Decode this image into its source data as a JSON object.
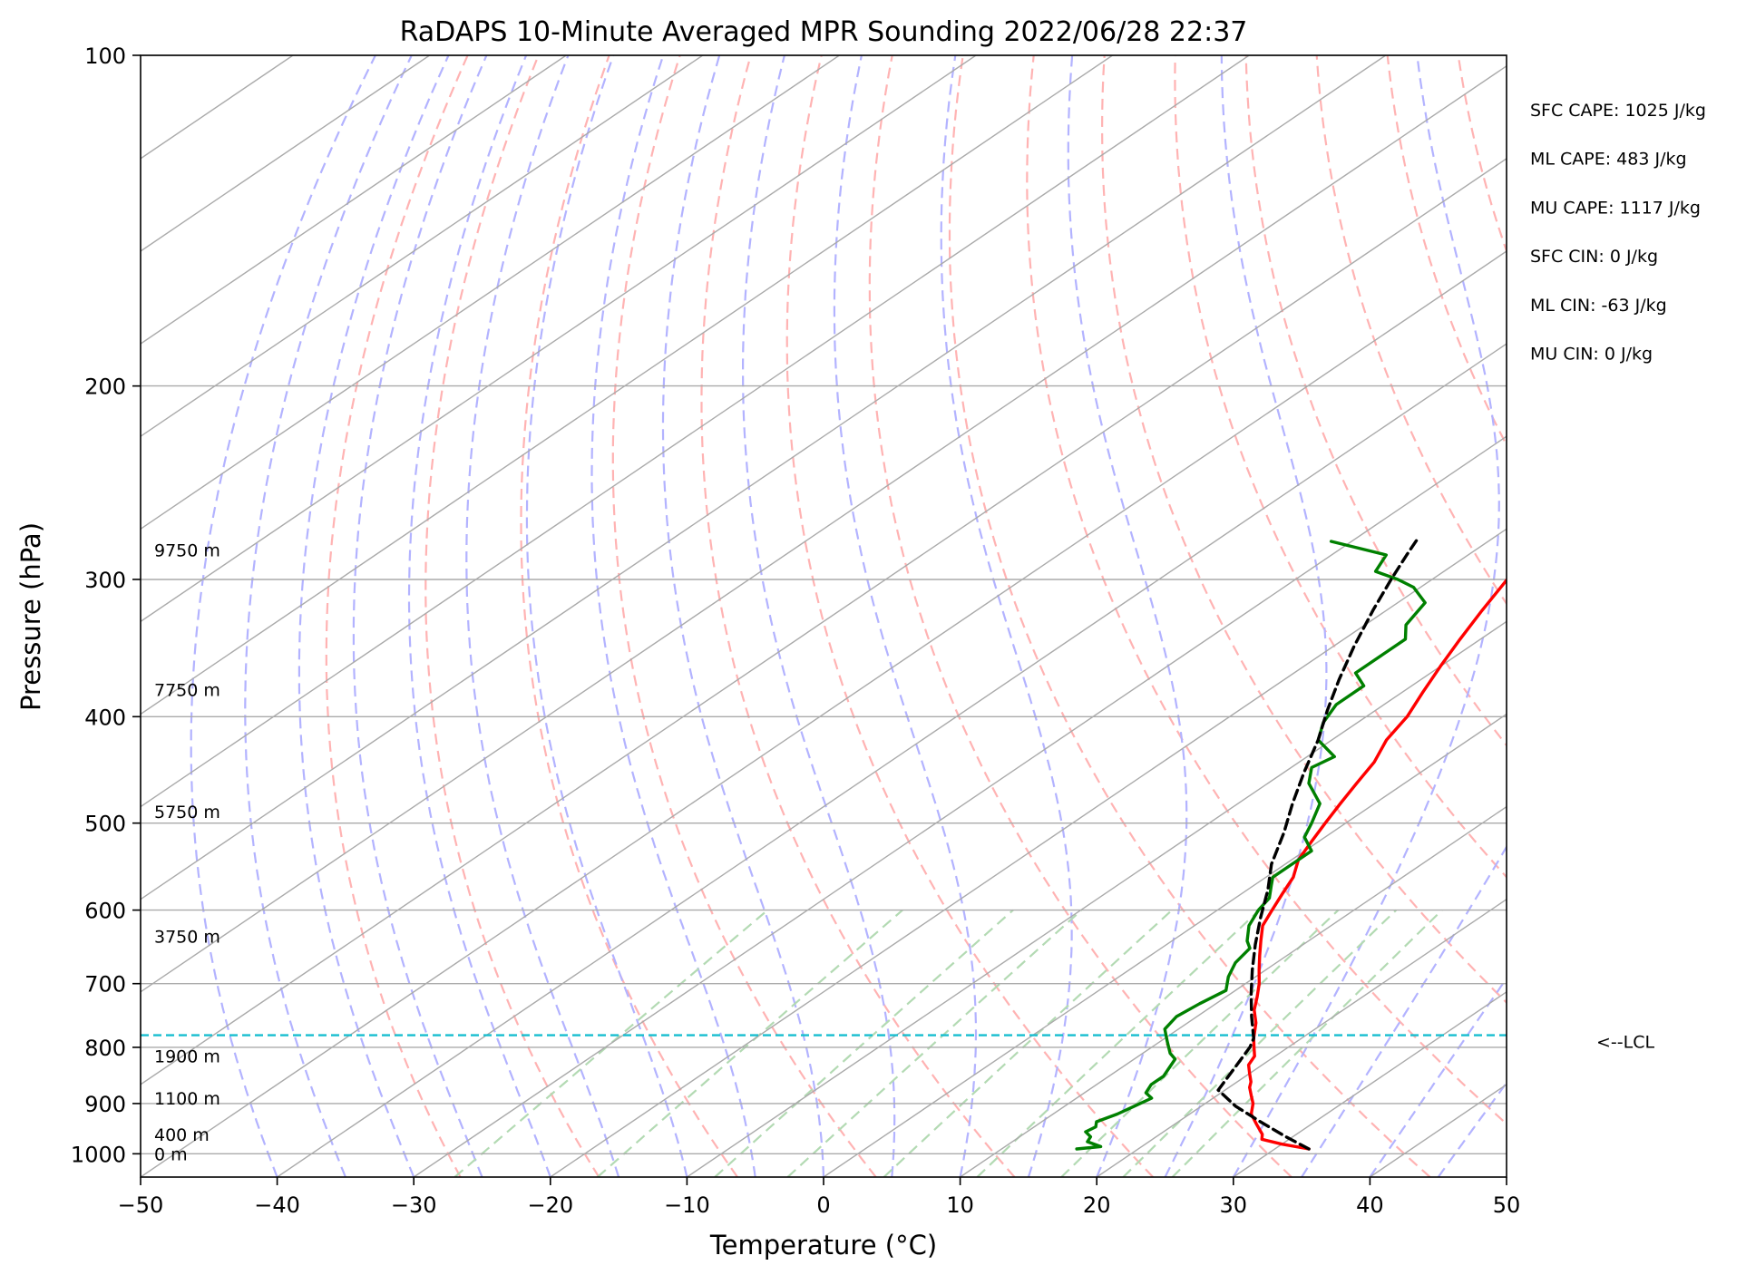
{
  "chart_data": {
    "type": "line",
    "subtype": "skew-t log-p diagram",
    "title": "RaDAPS 10-Minute Averaged MPR Sounding 2022/06/28 22:37",
    "xlabel": "Temperature (°C)",
    "ylabel": "Pressure (hPa)",
    "xlim": [
      -50,
      50
    ],
    "ylim": [
      1050,
      100
    ],
    "y_scale": "log",
    "x_ticks": [
      -50,
      -40,
      -30,
      -20,
      -10,
      0,
      10,
      20,
      30,
      40,
      50
    ],
    "x_tick_labels": [
      "−50",
      "−40",
      "−30",
      "−20",
      "−10",
      "0",
      "10",
      "20",
      "30",
      "40",
      "50"
    ],
    "y_ticks": [
      100,
      200,
      300,
      400,
      500,
      600,
      700,
      800,
      900,
      1000
    ],
    "y_tick_labels": [
      "100",
      "200",
      "300",
      "400",
      "500",
      "600",
      "700",
      "800",
      "900",
      "1000"
    ],
    "grid": true,
    "series": [
      {
        "color": "#ff0000",
        "points": [
          [
            32.5,
            990
          ],
          [
            30.0,
            980
          ],
          [
            28.0,
            970
          ],
          [
            27.5,
            960
          ],
          [
            26.0,
            940
          ],
          [
            24.5,
            920
          ],
          [
            23.5,
            900
          ],
          [
            22.5,
            885
          ],
          [
            21.5,
            870
          ],
          [
            21.0,
            860
          ],
          [
            20.0,
            845
          ],
          [
            19.0,
            830
          ],
          [
            18.5,
            815
          ],
          [
            17.5,
            800
          ],
          [
            16.5,
            785
          ],
          [
            15.0,
            760
          ],
          [
            13.5,
            740
          ],
          [
            12.3,
            720
          ],
          [
            11.0,
            700
          ],
          [
            9.5,
            680
          ],
          [
            8.0,
            660
          ],
          [
            6.5,
            640
          ],
          [
            5.0,
            620
          ],
          [
            4.0,
            600
          ],
          [
            3.0,
            580
          ],
          [
            2.0,
            560
          ],
          [
            0.5,
            540
          ],
          [
            -0.5,
            520
          ],
          [
            -1.5,
            500
          ],
          [
            -2.5,
            480
          ],
          [
            -3.5,
            460
          ],
          [
            -4.5,
            440
          ],
          [
            -6.0,
            420
          ],
          [
            -7.0,
            400
          ],
          [
            -8.5,
            380
          ],
          [
            -10.0,
            360
          ],
          [
            -11.5,
            340
          ],
          [
            -13.0,
            320
          ],
          [
            -14.5,
            300
          ],
          [
            -16.0,
            285
          ],
          [
            -17.0,
            275
          ]
        ]
      },
      {
        "color": "#008000",
        "points": [
          [
            15.5,
            990
          ],
          [
            17.0,
            985
          ],
          [
            15.5,
            975
          ],
          [
            15.2,
            965
          ],
          [
            14.3,
            955
          ],
          [
            14.5,
            945
          ],
          [
            14.0,
            935
          ],
          [
            14.7,
            920
          ],
          [
            15.1,
            905
          ],
          [
            15.5,
            890
          ],
          [
            14.5,
            880
          ],
          [
            14.0,
            865
          ],
          [
            14.0,
            850
          ],
          [
            13.5,
            835
          ],
          [
            13.0,
            820
          ],
          [
            12.0,
            810
          ],
          [
            10.5,
            790
          ],
          [
            9.0,
            770
          ],
          [
            8.5,
            750
          ],
          [
            8.8,
            730
          ],
          [
            9.3,
            710
          ],
          [
            8.0,
            690
          ],
          [
            7.0,
            670
          ],
          [
            6.5,
            650
          ],
          [
            5.5,
            640
          ],
          [
            4.0,
            620
          ],
          [
            3.0,
            600
          ],
          [
            2.5,
            585
          ],
          [
            1.3,
            570
          ],
          [
            0.5,
            560
          ],
          [
            0.5,
            545
          ],
          [
            0.5,
            530
          ],
          [
            -1.5,
            515
          ],
          [
            -2.5,
            500
          ],
          [
            -4.0,
            480
          ],
          [
            -7.0,
            460
          ],
          [
            -8.5,
            445
          ],
          [
            -8.0,
            435
          ],
          [
            -11.0,
            420
          ],
          [
            -12.5,
            405
          ],
          [
            -13.5,
            390
          ],
          [
            -13.5,
            375
          ],
          [
            -15.5,
            365
          ],
          [
            -15.5,
            350
          ],
          [
            -15.5,
            340
          ],
          [
            -17.0,
            330
          ],
          [
            -18.0,
            315
          ],
          [
            -20.5,
            305
          ],
          [
            -22.5,
            300
          ],
          [
            -25.0,
            295
          ],
          [
            -26.0,
            285
          ],
          [
            -31.5,
            277
          ]
        ]
      },
      {
        "color": "#000000",
        "dash": "dashed",
        "points": [
          [
            32.5,
            990
          ],
          [
            29.5,
            965
          ],
          [
            26.0,
            935
          ],
          [
            22.5,
            905
          ],
          [
            19.5,
            875
          ],
          [
            17.2,
            800
          ],
          [
            16.5,
            785
          ],
          [
            14.0,
            750
          ],
          [
            11.5,
            715
          ],
          [
            9.0,
            680
          ],
          [
            6.5,
            645
          ],
          [
            4.0,
            610
          ],
          [
            1.5,
            575
          ],
          [
            -1.0,
            545
          ],
          [
            -3.5,
            510
          ],
          [
            -6.0,
            480
          ],
          [
            -8.5,
            450
          ],
          [
            -11.0,
            420
          ],
          [
            -13.5,
            395
          ],
          [
            -16.0,
            370
          ],
          [
            -18.5,
            345
          ],
          [
            -21.0,
            320
          ],
          [
            -23.0,
            300
          ],
          [
            -24.5,
            285
          ],
          [
            -25.5,
            275
          ]
        ]
      }
    ],
    "lcl_pressure": 780,
    "lcl_label": "<--LCL",
    "height_labels": [
      {
        "text": "9750 m",
        "p": 282
      },
      {
        "text": "7750 m",
        "p": 378
      },
      {
        "text": "5750 m",
        "p": 488
      },
      {
        "text": "3750 m",
        "p": 634
      },
      {
        "text": "1900 m",
        "p": 815
      },
      {
        "text": "1100 m",
        "p": 890
      },
      {
        "text": "400 m",
        "p": 960
      },
      {
        "text": "0 m",
        "p": 1000
      }
    ],
    "indices": [
      "SFC CAPE: 1025 J/kg",
      "ML CAPE: 483 J/kg",
      "MU CAPE: 1117 J/kg",
      "SFC CIN: 0 J/kg",
      "ML CIN: -63 J/kg",
      "MU CIN: 0 J/kg"
    ],
    "background_lines": {
      "isotherm_color": "#aaaaaa",
      "dry_adiabat_color": "#ffb3b3",
      "moist_adiabat_color": "#b3b3ff",
      "mixing_ratio_color": "#b3dab3",
      "lcl_color": "#17becf"
    }
  }
}
